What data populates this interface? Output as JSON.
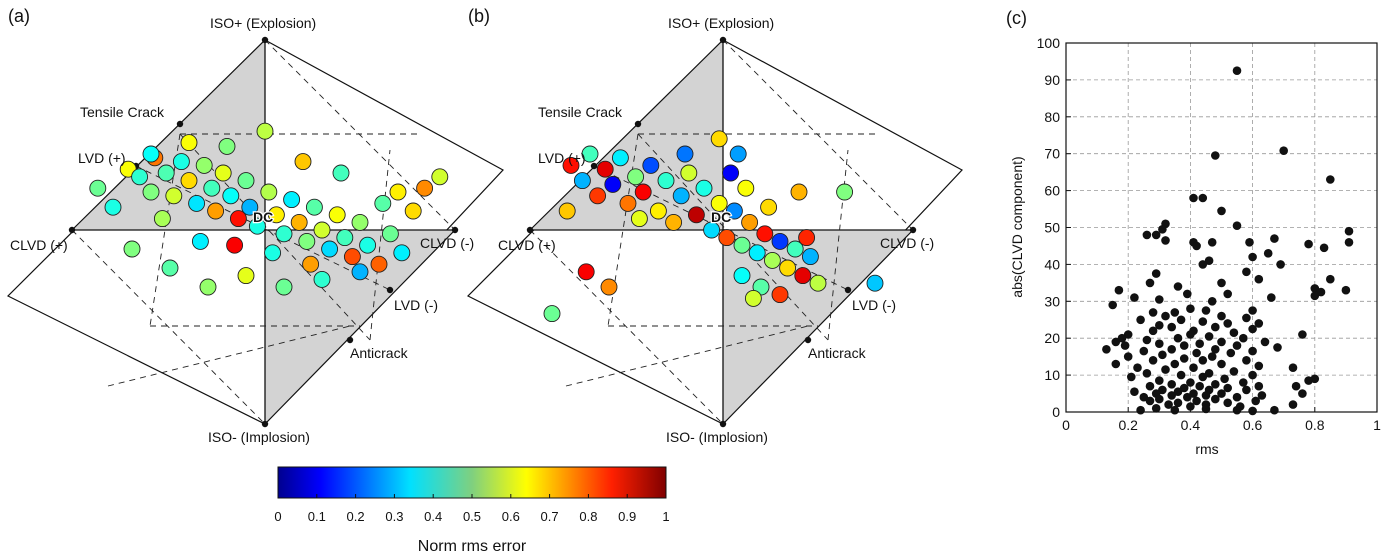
{
  "panels": {
    "a": {
      "tag": "(a)",
      "labels": {
        "iso_plus": "ISO+ (Explosion)",
        "iso_minus": "ISO- (Implosion)",
        "tensile": "Tensile Crack",
        "lvd_plus": "LVD (+)",
        "clvd_plus": "CLVD (+)",
        "clvd_minus": "CLVD (-)",
        "lvd_minus": "LVD (-)",
        "anticrack": "Anticrack",
        "dc": "DC"
      }
    },
    "b": {
      "tag": "(b)",
      "labels": {
        "iso_plus": "ISO+ (Explosion)",
        "iso_minus": "ISO- (Implosion)",
        "tensile": "Tensile Crack",
        "lvd_plus": "LVD (+)",
        "clvd_plus": "CLVD (+)",
        "clvd_minus": "CLVD (-)",
        "lvd_minus": "LVD (-)",
        "anticrack": "Anticrack",
        "dc": "DC"
      }
    },
    "c": {
      "tag": "(c)"
    }
  },
  "colorbar": {
    "label": "Norm rms error",
    "ticks": [
      "0",
      "0.1",
      "0.2",
      "0.3",
      "0.4",
      "0.5",
      "0.6",
      "0.7",
      "0.8",
      "0.9",
      "1"
    ],
    "colormap": "jet"
  },
  "chart_data": [
    {
      "type": "scatter",
      "panel": "c",
      "xlabel": "rms",
      "ylabel": "abs(CLVD component)",
      "xlim": [
        0,
        1
      ],
      "ylim": [
        0,
        100
      ],
      "xticks": [
        "0",
        "0.2",
        "0.4",
        "0.6",
        "0.8",
        "1"
      ],
      "yticks": [
        "0",
        "10",
        "20",
        "30",
        "40",
        "50",
        "60",
        "70",
        "80",
        "90",
        "100"
      ],
      "grid": true,
      "marker_color": "#111111",
      "points": [
        [
          0.55,
          92.5
        ],
        [
          0.7,
          70.8
        ],
        [
          0.48,
          69.5
        ],
        [
          0.85,
          63.0
        ],
        [
          0.41,
          58.0
        ],
        [
          0.44,
          58.0
        ],
        [
          0.5,
          54.5
        ],
        [
          0.32,
          51.0
        ],
        [
          0.55,
          50.5
        ],
        [
          0.31,
          49.5
        ],
        [
          0.91,
          49.0
        ],
        [
          0.26,
          48.0
        ],
        [
          0.29,
          48.0
        ],
        [
          0.67,
          47.0
        ],
        [
          0.47,
          46.0
        ],
        [
          0.59,
          46.0
        ],
        [
          0.41,
          46.0
        ],
        [
          0.91,
          46.0
        ],
        [
          0.32,
          46.5
        ],
        [
          0.78,
          45.5
        ],
        [
          0.42,
          45.0
        ],
        [
          0.83,
          44.5
        ],
        [
          0.65,
          43.0
        ],
        [
          0.6,
          42.0
        ],
        [
          0.46,
          41.0
        ],
        [
          0.69,
          40.0
        ],
        [
          0.44,
          40.0
        ],
        [
          0.58,
          38.0
        ],
        [
          0.29,
          37.5
        ],
        [
          0.85,
          36.0
        ],
        [
          0.62,
          36.0
        ],
        [
          0.5,
          35.0
        ],
        [
          0.27,
          35.0
        ],
        [
          0.36,
          34.0
        ],
        [
          0.8,
          33.5
        ],
        [
          0.17,
          33.0
        ],
        [
          0.9,
          33.0
        ],
        [
          0.82,
          32.5
        ],
        [
          0.8,
          31.5
        ],
        [
          0.39,
          32.0
        ],
        [
          0.52,
          32.0
        ],
        [
          0.22,
          31.0
        ],
        [
          0.66,
          31.0
        ],
        [
          0.3,
          30.5
        ],
        [
          0.47,
          30.0
        ],
        [
          0.15,
          29.0
        ],
        [
          0.4,
          28.0
        ],
        [
          0.45,
          27.5
        ],
        [
          0.6,
          27.5
        ],
        [
          0.35,
          27.0
        ],
        [
          0.28,
          27.0
        ],
        [
          0.32,
          26.0
        ],
        [
          0.5,
          26.0
        ],
        [
          0.58,
          25.5
        ],
        [
          0.37,
          25.0
        ],
        [
          0.24,
          25.0
        ],
        [
          0.44,
          24.5
        ],
        [
          0.52,
          24.0
        ],
        [
          0.62,
          24.0
        ],
        [
          0.3,
          23.5
        ],
        [
          0.34,
          23.0
        ],
        [
          0.48,
          23.0
        ],
        [
          0.6,
          22.5
        ],
        [
          0.28,
          22.0
        ],
        [
          0.41,
          22.0
        ],
        [
          0.54,
          21.5
        ],
        [
          0.76,
          21.0
        ],
        [
          0.2,
          21.0
        ],
        [
          0.4,
          21.0
        ],
        [
          0.46,
          20.5
        ],
        [
          0.36,
          20.0
        ],
        [
          0.18,
          20.0
        ],
        [
          0.57,
          20.0
        ],
        [
          0.26,
          19.5
        ],
        [
          0.5,
          19.0
        ],
        [
          0.16,
          19.0
        ],
        [
          0.64,
          19.0
        ],
        [
          0.3,
          18.5
        ],
        [
          0.43,
          18.5
        ],
        [
          0.55,
          18.0
        ],
        [
          0.19,
          18.0
        ],
        [
          0.38,
          18.0
        ],
        [
          0.13,
          17.0
        ],
        [
          0.68,
          17.5
        ],
        [
          0.48,
          17.0
        ],
        [
          0.34,
          17.0
        ],
        [
          0.6,
          16.5
        ],
        [
          0.25,
          16.5
        ],
        [
          0.42,
          16.0
        ],
        [
          0.53,
          16.0
        ],
        [
          0.31,
          15.5
        ],
        [
          0.2,
          15.0
        ],
        [
          0.47,
          15.0
        ],
        [
          0.38,
          14.5
        ],
        [
          0.58,
          14.0
        ],
        [
          0.28,
          14.0
        ],
        [
          0.44,
          14.0
        ],
        [
          0.16,
          13.0
        ],
        [
          0.35,
          13.0
        ],
        [
          0.5,
          13.0
        ],
        [
          0.62,
          12.5
        ],
        [
          0.23,
          12.0
        ],
        [
          0.41,
          12.0
        ],
        [
          0.73,
          12.0
        ],
        [
          0.32,
          11.5
        ],
        [
          0.54,
          11.0
        ],
        [
          0.46,
          10.5
        ],
        [
          0.26,
          10.5
        ],
        [
          0.37,
          10.0
        ],
        [
          0.6,
          10.0
        ],
        [
          0.21,
          9.5
        ],
        [
          0.44,
          9.5
        ],
        [
          0.51,
          9.0
        ],
        [
          0.8,
          9.0
        ],
        [
          0.78,
          8.5
        ],
        [
          0.3,
          8.5
        ],
        [
          0.4,
          8.0
        ],
        [
          0.57,
          8.0
        ],
        [
          0.34,
          7.5
        ],
        [
          0.48,
          7.5
        ],
        [
          0.62,
          7.0
        ],
        [
          0.27,
          7.0
        ],
        [
          0.43,
          7.0
        ],
        [
          0.74,
          7.0
        ],
        [
          0.38,
          6.5
        ],
        [
          0.52,
          6.5
        ],
        [
          0.31,
          6.0
        ],
        [
          0.46,
          6.0
        ],
        [
          0.58,
          6.0
        ],
        [
          0.22,
          5.5
        ],
        [
          0.36,
          5.5
        ],
        [
          0.76,
          5.0
        ],
        [
          0.41,
          5.0
        ],
        [
          0.29,
          5.0
        ],
        [
          0.5,
          5.0
        ],
        [
          0.63,
          4.5
        ],
        [
          0.34,
          4.5
        ],
        [
          0.45,
          4.5
        ],
        [
          0.25,
          4.0
        ],
        [
          0.39,
          4.0
        ],
        [
          0.55,
          4.0
        ],
        [
          0.48,
          3.5
        ],
        [
          0.3,
          3.5
        ],
        [
          0.42,
          3.0
        ],
        [
          0.61,
          3.0
        ],
        [
          0.27,
          3.0
        ],
        [
          0.36,
          2.5
        ],
        [
          0.52,
          2.5
        ],
        [
          0.45,
          2.0
        ],
        [
          0.33,
          2.0
        ],
        [
          0.73,
          2.0
        ],
        [
          0.4,
          1.5
        ],
        [
          0.56,
          1.5
        ],
        [
          0.29,
          1.0
        ],
        [
          0.24,
          0.5
        ],
        [
          0.55,
          0.5
        ],
        [
          0.35,
          0.5
        ],
        [
          0.67,
          0.5
        ],
        [
          0.45,
          0.8
        ],
        [
          0.6,
          0.3
        ]
      ]
    },
    {
      "type": "scatter",
      "panel": "a",
      "coordinates": "source-type diagram (Hudson u,v)",
      "value_label": "Norm rms error",
      "points": [
        [
          -0.88,
          0.22,
          0.48
        ],
        [
          -0.72,
          0.32,
          0.62
        ],
        [
          -0.66,
          0.28,
          0.42
        ],
        [
          -0.58,
          0.38,
          0.76
        ],
        [
          -0.6,
          0.2,
          0.5
        ],
        [
          -0.52,
          0.3,
          0.45
        ],
        [
          -0.48,
          0.18,
          0.58
        ],
        [
          -0.44,
          0.36,
          0.4
        ],
        [
          -0.4,
          0.26,
          0.66
        ],
        [
          -0.36,
          0.14,
          0.35
        ],
        [
          -0.32,
          0.34,
          0.52
        ],
        [
          -0.28,
          0.22,
          0.44
        ],
        [
          -0.26,
          0.1,
          0.72
        ],
        [
          -0.22,
          0.3,
          0.6
        ],
        [
          -0.18,
          0.18,
          0.38
        ],
        [
          -0.14,
          0.06,
          0.86
        ],
        [
          -0.1,
          0.26,
          0.48
        ],
        [
          -0.08,
          0.12,
          0.3
        ],
        [
          -0.04,
          0.02,
          0.4
        ],
        [
          0.02,
          0.2,
          0.55
        ],
        [
          0.06,
          0.08,
          0.64
        ],
        [
          0.1,
          -0.02,
          0.42
        ],
        [
          0.14,
          0.16,
          0.36
        ],
        [
          0.18,
          0.04,
          0.7
        ],
        [
          0.22,
          -0.06,
          0.5
        ],
        [
          0.26,
          0.12,
          0.46
        ],
        [
          0.3,
          0.0,
          0.58
        ],
        [
          0.34,
          -0.1,
          0.34
        ],
        [
          0.38,
          0.08,
          0.62
        ],
        [
          0.42,
          -0.04,
          0.44
        ],
        [
          0.46,
          -0.14,
          0.8
        ],
        [
          0.5,
          0.04,
          0.52
        ],
        [
          0.54,
          -0.08,
          0.4
        ],
        [
          0.6,
          -0.18,
          0.78
        ],
        [
          0.66,
          -0.02,
          0.48
        ],
        [
          0.72,
          -0.12,
          0.36
        ],
        [
          0.78,
          0.1,
          0.66
        ],
        [
          0.84,
          0.22,
          0.74
        ],
        [
          0.92,
          0.28,
          0.58
        ],
        [
          -0.7,
          -0.1,
          0.5
        ],
        [
          -0.5,
          -0.2,
          0.46
        ],
        [
          -0.3,
          -0.3,
          0.52
        ],
        [
          -0.1,
          -0.24,
          0.6
        ],
        [
          0.1,
          -0.3,
          0.48
        ],
        [
          0.3,
          -0.26,
          0.42
        ],
        [
          0.5,
          -0.22,
          0.3
        ],
        [
          -0.2,
          0.44,
          0.5
        ],
        [
          0.0,
          0.52,
          0.56
        ],
        [
          -0.4,
          0.46,
          0.62
        ],
        [
          0.2,
          0.36,
          0.68
        ],
        [
          0.4,
          0.3,
          0.44
        ],
        [
          -0.6,
          0.4,
          0.38
        ],
        [
          -0.16,
          -0.08,
          0.88
        ],
        [
          0.04,
          -0.12,
          0.4
        ],
        [
          0.24,
          -0.18,
          0.72
        ],
        [
          -0.34,
          -0.06,
          0.36
        ],
        [
          -0.54,
          0.06,
          0.54
        ],
        [
          0.62,
          0.14,
          0.46
        ],
        [
          0.7,
          0.2,
          0.64
        ],
        [
          -0.8,
          0.12,
          0.4
        ]
      ]
    },
    {
      "type": "scatter",
      "panel": "b",
      "coordinates": "source-type diagram (Hudson u,v)",
      "value_label": "Norm rms error",
      "points": [
        [
          -0.8,
          0.34,
          0.86
        ],
        [
          -0.74,
          0.26,
          0.3
        ],
        [
          -0.7,
          0.4,
          0.44
        ],
        [
          -0.66,
          0.18,
          0.82
        ],
        [
          -0.62,
          0.32,
          0.9
        ],
        [
          -0.58,
          0.24,
          0.12
        ],
        [
          -0.54,
          0.38,
          0.36
        ],
        [
          -0.5,
          0.14,
          0.76
        ],
        [
          -0.46,
          0.28,
          0.5
        ],
        [
          -0.42,
          0.2,
          0.88
        ],
        [
          -0.38,
          0.34,
          0.2
        ],
        [
          -0.34,
          0.1,
          0.64
        ],
        [
          -0.3,
          0.26,
          0.42
        ],
        [
          -0.26,
          0.04,
          0.7
        ],
        [
          -0.22,
          0.18,
          0.3
        ],
        [
          -0.18,
          0.3,
          0.58
        ],
        [
          -0.14,
          0.08,
          0.94
        ],
        [
          -0.1,
          0.22,
          0.4
        ],
        [
          -0.06,
          0.0,
          0.34
        ],
        [
          -0.02,
          0.14,
          0.62
        ],
        [
          0.02,
          -0.04,
          0.8
        ],
        [
          0.06,
          0.1,
          0.26
        ],
        [
          0.1,
          -0.08,
          0.48
        ],
        [
          0.14,
          0.04,
          0.72
        ],
        [
          0.18,
          -0.12,
          0.36
        ],
        [
          0.22,
          -0.02,
          0.86
        ],
        [
          0.26,
          -0.16,
          0.54
        ],
        [
          0.3,
          -0.06,
          0.18
        ],
        [
          0.34,
          -0.2,
          0.66
        ],
        [
          0.38,
          -0.1,
          0.44
        ],
        [
          0.42,
          -0.24,
          0.9
        ],
        [
          0.46,
          -0.14,
          0.3
        ],
        [
          0.5,
          -0.28,
          0.56
        ],
        [
          0.04,
          0.3,
          0.12
        ],
        [
          0.08,
          0.4,
          0.28
        ],
        [
          0.12,
          0.22,
          0.62
        ],
        [
          -0.02,
          0.48,
          0.66
        ],
        [
          0.4,
          0.2,
          0.7
        ],
        [
          0.64,
          0.2,
          0.5
        ],
        [
          0.8,
          -0.28,
          0.32
        ],
        [
          -0.72,
          -0.22,
          0.88
        ],
        [
          -0.6,
          -0.3,
          0.74
        ],
        [
          -0.9,
          -0.44,
          0.48
        ],
        [
          0.2,
          -0.3,
          0.46
        ],
        [
          0.3,
          -0.34,
          0.82
        ],
        [
          0.1,
          -0.24,
          0.38
        ],
        [
          0.44,
          -0.04,
          0.84
        ],
        [
          -0.44,
          0.06,
          0.6
        ],
        [
          -0.2,
          0.4,
          0.24
        ],
        [
          0.24,
          0.12,
          0.66
        ],
        [
          -0.82,
          0.1,
          0.68
        ],
        [
          0.16,
          -0.36,
          0.58
        ]
      ]
    }
  ]
}
